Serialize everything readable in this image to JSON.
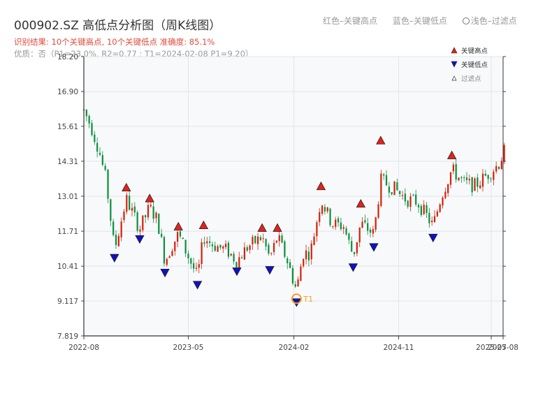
{
  "header": {
    "title": "000902.SZ 高低点分析图（周K线图）",
    "result": "识别结果: 10个关键高点, 10个关键低点   准确度: 85.1%",
    "info": "优质：否（P1=23.0%, R2=0.77 ; T1=2024-02-08 P1=9.20）"
  },
  "top_legend": {
    "red": "红色–关键高点",
    "blue": "蓝色–关键低点",
    "light": "浅色–过滤点"
  },
  "chart_data": {
    "type": "candlestick",
    "title": "000902.SZ 高低点分析图（周K线图）",
    "y_ticks": [
      "7.819",
      "9.117",
      "10.41",
      "11.71",
      "13.01",
      "14.31",
      "15.61",
      "16.90",
      "18.20"
    ],
    "x_ticks": [
      "2022-08",
      "2023-05",
      "2024-02",
      "2024-11",
      "2025-07",
      "2025-08"
    ],
    "ylim": [
      7.819,
      18.2
    ],
    "x_range": [
      "2022-08",
      "2025-08"
    ],
    "up_color": "#d81e06",
    "down_color": "#0a8f3c",
    "high_color": "#e8201a",
    "low_color": "#1010c8",
    "legend": {
      "high": "关键高点",
      "low": "关键低点",
      "filtered": "过滤点",
      "position": "top-right"
    },
    "key_highs": [
      {
        "date": "2022-11-20",
        "price": 13.2
      },
      {
        "date": "2023-01-20",
        "price": 12.8
      },
      {
        "date": "2023-04-05",
        "price": 11.75
      },
      {
        "date": "2023-06-10",
        "price": 11.8
      },
      {
        "date": "2023-11-10",
        "price": 11.7
      },
      {
        "date": "2023-12-20",
        "price": 11.7
      },
      {
        "date": "2024-04-12",
        "price": 13.25
      },
      {
        "date": "2024-07-25",
        "price": 12.6
      },
      {
        "date": "2024-09-15",
        "price": 14.95
      },
      {
        "date": "2025-03-20",
        "price": 14.4
      }
    ],
    "key_lows": [
      {
        "date": "2022-10-20",
        "price": 10.85
      },
      {
        "date": "2022-12-25",
        "price": 11.55
      },
      {
        "date": "2023-03-01",
        "price": 10.3
      },
      {
        "date": "2023-05-25",
        "price": 9.85
      },
      {
        "date": "2023-09-05",
        "price": 10.35
      },
      {
        "date": "2023-11-30",
        "price": 10.4
      },
      {
        "date": "2024-02-08",
        "price": 9.2
      },
      {
        "date": "2024-07-05",
        "price": 10.5
      },
      {
        "date": "2024-08-28",
        "price": 11.25
      },
      {
        "date": "2025-01-30",
        "price": 11.6
      }
    ],
    "t1_marker": {
      "label": "T1",
      "date": "2024-02-08",
      "price": 9.2
    },
    "path": [
      [
        "2022-08-01",
        16.2
      ],
      [
        "2022-08-20",
        15.6
      ],
      [
        "2022-09-10",
        14.7
      ],
      [
        "2022-09-28",
        13.6
      ],
      [
        "2022-10-20",
        11.0
      ],
      [
        "2022-11-05",
        12.0
      ],
      [
        "2022-11-20",
        12.9
      ],
      [
        "2022-12-25",
        11.8
      ],
      [
        "2023-01-20",
        12.6
      ],
      [
        "2023-02-10",
        12.1
      ],
      [
        "2023-03-01",
        10.6
      ],
      [
        "2023-03-20",
        11.2
      ],
      [
        "2023-04-05",
        11.6
      ],
      [
        "2023-05-25",
        10.0
      ],
      [
        "2023-06-10",
        11.5
      ],
      [
        "2023-07-05",
        11.2
      ],
      [
        "2023-08-10",
        11.0
      ],
      [
        "2023-09-05",
        10.6
      ],
      [
        "2023-10-01",
        11.1
      ],
      [
        "2023-11-10",
        11.5
      ],
      [
        "2023-11-30",
        10.7
      ],
      [
        "2023-12-20",
        11.5
      ],
      [
        "2024-01-15",
        10.6
      ],
      [
        "2024-02-08",
        9.5
      ],
      [
        "2024-02-25",
        10.9
      ],
      [
        "2024-03-15",
        10.9
      ],
      [
        "2024-04-12",
        12.9
      ],
      [
        "2024-05-10",
        12.0
      ],
      [
        "2024-06-10",
        11.9
      ],
      [
        "2024-07-05",
        10.8
      ],
      [
        "2024-07-25",
        12.0
      ],
      [
        "2024-08-28",
        11.6
      ],
      [
        "2024-09-15",
        13.6
      ],
      [
        "2024-10-20",
        13.3
      ],
      [
        "2024-11-20",
        12.9
      ],
      [
        "2024-12-20",
        12.8
      ],
      [
        "2025-01-30",
        11.9
      ],
      [
        "2025-02-20",
        13.0
      ],
      [
        "2025-03-20",
        14.0
      ],
      [
        "2025-04-20",
        13.5
      ],
      [
        "2025-05-20",
        13.4
      ],
      [
        "2025-06-20",
        13.8
      ],
      [
        "2025-07-20",
        14.2
      ],
      [
        "2025-08-05",
        14.7
      ]
    ]
  }
}
